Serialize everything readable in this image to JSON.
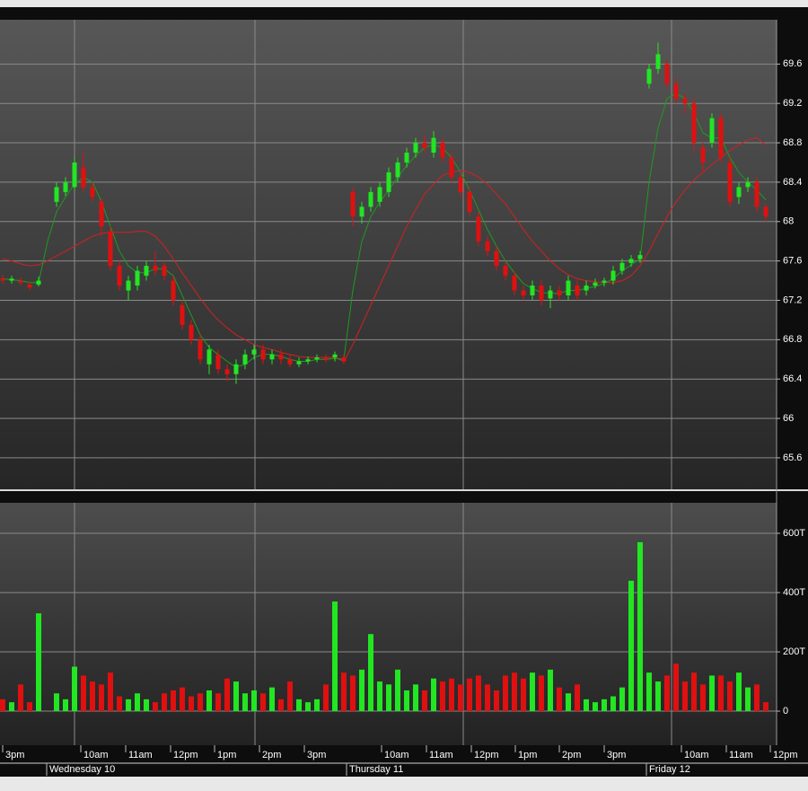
{
  "chart_data": [
    {
      "type": "candlestick",
      "up_color": "#22e622",
      "down_color": "#e01010",
      "xlim": [
        -0.3,
        86.2
      ],
      "ylim": [
        65.28,
        70.05
      ],
      "yticks": [
        65.6,
        66,
        66.4,
        66.8,
        67.2,
        67.6,
        68,
        68.4,
        68.8,
        69.2,
        69.6
      ],
      "grid": true,
      "candles": [
        [
          67.42,
          67.46,
          67.37,
          67.4
        ],
        [
          67.4,
          67.45,
          67.37,
          67.42
        ],
        [
          67.4,
          67.43,
          67.35,
          67.38
        ],
        [
          67.36,
          67.39,
          67.3,
          67.33
        ],
        [
          67.36,
          67.44,
          67.34,
          67.4
        ],
        null,
        [
          68.2,
          68.4,
          68.15,
          68.35
        ],
        [
          68.3,
          68.45,
          68.26,
          68.4
        ],
        [
          68.35,
          68.65,
          68.32,
          68.6
        ],
        [
          68.55,
          68.7,
          68.3,
          68.35
        ],
        [
          68.35,
          68.4,
          68.2,
          68.25
        ],
        [
          68.2,
          68.24,
          67.85,
          67.95
        ],
        [
          67.9,
          67.95,
          67.5,
          67.55
        ],
        [
          67.55,
          67.6,
          67.3,
          67.35
        ],
        [
          67.3,
          67.45,
          67.2,
          67.4
        ],
        [
          67.35,
          67.55,
          67.3,
          67.5
        ],
        [
          67.45,
          67.6,
          67.4,
          67.55
        ],
        [
          67.55,
          67.7,
          67.45,
          67.5
        ],
        [
          67.55,
          67.6,
          67.4,
          67.45
        ],
        [
          67.4,
          67.45,
          67.15,
          67.2
        ],
        [
          67.15,
          67.2,
          66.9,
          66.95
        ],
        [
          66.95,
          67.0,
          66.75,
          66.8
        ],
        [
          66.8,
          66.85,
          66.55,
          66.6
        ],
        [
          66.55,
          66.75,
          66.45,
          66.7
        ],
        [
          66.65,
          66.7,
          66.45,
          66.5
        ],
        [
          66.5,
          66.55,
          66.38,
          66.45
        ],
        [
          66.45,
          66.6,
          66.35,
          66.55
        ],
        [
          66.55,
          66.7,
          66.5,
          66.65
        ],
        [
          66.65,
          66.75,
          66.6,
          66.7
        ],
        [
          66.7,
          66.75,
          66.55,
          66.6
        ],
        [
          66.6,
          66.7,
          66.55,
          66.65
        ],
        [
          66.65,
          66.7,
          66.55,
          66.6
        ],
        [
          66.6,
          66.65,
          66.52,
          66.55
        ],
        [
          66.55,
          66.62,
          66.52,
          66.58
        ],
        [
          66.58,
          66.63,
          66.55,
          66.6
        ],
        [
          66.6,
          66.65,
          66.57,
          66.62
        ],
        [
          66.62,
          66.65,
          66.57,
          66.6
        ],
        [
          66.62,
          66.68,
          66.58,
          66.65
        ],
        [
          66.62,
          66.65,
          66.55,
          66.58
        ],
        [
          68.3,
          68.35,
          67.95,
          68.05
        ],
        [
          68.05,
          68.2,
          67.98,
          68.15
        ],
        [
          68.15,
          68.35,
          68.1,
          68.3
        ],
        [
          68.2,
          68.4,
          68.15,
          68.35
        ],
        [
          68.3,
          68.55,
          68.25,
          68.5
        ],
        [
          68.45,
          68.65,
          68.4,
          68.6
        ],
        [
          68.6,
          68.75,
          68.55,
          68.7
        ],
        [
          68.7,
          68.85,
          68.65,
          68.8
        ],
        [
          68.8,
          68.88,
          68.7,
          68.75
        ],
        [
          68.7,
          68.92,
          68.65,
          68.85
        ],
        [
          68.8,
          68.85,
          68.6,
          68.65
        ],
        [
          68.65,
          68.7,
          68.4,
          68.45
        ],
        [
          68.45,
          68.5,
          68.25,
          68.3
        ],
        [
          68.3,
          68.35,
          68.05,
          68.1
        ],
        [
          68.05,
          68.1,
          67.75,
          67.8
        ],
        [
          67.8,
          67.85,
          67.65,
          67.7
        ],
        [
          67.7,
          67.75,
          67.5,
          67.55
        ],
        [
          67.55,
          67.6,
          67.4,
          67.45
        ],
        [
          67.45,
          67.5,
          67.25,
          67.3
        ],
        [
          67.3,
          67.35,
          67.2,
          67.25
        ],
        [
          67.25,
          67.4,
          67.2,
          67.35
        ],
        [
          67.35,
          67.4,
          67.15,
          67.2
        ],
        [
          67.22,
          67.35,
          67.12,
          67.3
        ],
        [
          67.3,
          67.35,
          67.2,
          67.25
        ],
        [
          67.25,
          67.45,
          67.2,
          67.4
        ],
        [
          67.35,
          67.4,
          67.2,
          67.25
        ],
        [
          67.3,
          67.4,
          67.25,
          67.35
        ],
        [
          67.35,
          67.42,
          67.32,
          67.38
        ],
        [
          67.38,
          67.43,
          67.34,
          67.4
        ],
        [
          67.4,
          67.55,
          67.36,
          67.5
        ],
        [
          67.5,
          67.62,
          67.46,
          67.58
        ],
        [
          67.58,
          67.66,
          67.54,
          67.62
        ],
        [
          67.62,
          67.7,
          67.58,
          67.66
        ],
        [
          69.4,
          69.6,
          69.35,
          69.55
        ],
        [
          69.55,
          69.82,
          69.5,
          69.7
        ],
        [
          69.6,
          69.65,
          69.35,
          69.4
        ],
        [
          69.4,
          69.45,
          69.2,
          69.25
        ],
        [
          69.25,
          69.3,
          69.1,
          69.2
        ],
        [
          69.2,
          69.25,
          68.7,
          68.8
        ],
        [
          68.75,
          68.8,
          68.5,
          68.6
        ],
        [
          68.8,
          69.1,
          68.75,
          69.05
        ],
        [
          69.05,
          69.1,
          68.6,
          68.65
        ],
        [
          68.6,
          68.65,
          68.15,
          68.2
        ],
        [
          68.25,
          68.4,
          68.18,
          68.35
        ],
        [
          68.35,
          68.45,
          68.3,
          68.4
        ],
        [
          68.4,
          68.45,
          68.1,
          68.15
        ],
        [
          68.15,
          68.18,
          68.0,
          68.05
        ]
      ],
      "lines": [
        {
          "color": "#d42020",
          "values": [
            67.62,
            67.6,
            67.57,
            67.55,
            67.56,
            67.6,
            67.65,
            67.7,
            67.75,
            67.8,
            67.85,
            67.88,
            67.89,
            67.89,
            67.89,
            67.9,
            67.9,
            67.85,
            67.75,
            67.62,
            67.48,
            67.35,
            67.22,
            67.1,
            67.0,
            66.92,
            66.85,
            66.8,
            66.75,
            66.72,
            66.7,
            66.67,
            66.65,
            66.63,
            66.62,
            66.62,
            66.62,
            66.62,
            66.58,
            66.75,
            66.95,
            67.15,
            67.35,
            67.55,
            67.75,
            67.95,
            68.12,
            68.28,
            68.38,
            68.47,
            68.5,
            68.52,
            68.5,
            68.45,
            68.38,
            68.28,
            68.18,
            68.05,
            67.92,
            67.8,
            67.7,
            67.6,
            67.52,
            67.46,
            67.42,
            67.4,
            67.39,
            67.38,
            67.38,
            67.4,
            67.45,
            67.55,
            67.7,
            67.88,
            68.05,
            68.2,
            68.32,
            68.42,
            68.5,
            68.58,
            68.65,
            68.72,
            68.78,
            68.83,
            68.85,
            68.78
          ]
        },
        {
          "color": "#1f9a1f",
          "values": [
            67.42,
            67.41,
            67.4,
            67.38,
            67.38,
            67.8,
            68.1,
            68.25,
            68.38,
            68.45,
            68.4,
            68.2,
            67.95,
            67.7,
            67.55,
            67.48,
            67.48,
            67.52,
            67.52,
            67.45,
            67.25,
            67.05,
            66.85,
            66.72,
            66.65,
            66.58,
            66.52,
            66.55,
            66.62,
            66.65,
            66.65,
            66.63,
            66.6,
            66.58,
            66.58,
            66.6,
            66.6,
            66.61,
            66.6,
            67.3,
            67.8,
            68.05,
            68.2,
            68.32,
            68.45,
            68.57,
            68.67,
            68.75,
            68.78,
            68.75,
            68.65,
            68.5,
            68.32,
            68.12,
            67.92,
            67.75,
            67.6,
            67.48,
            67.37,
            67.32,
            67.28,
            67.27,
            67.27,
            67.3,
            67.3,
            67.32,
            67.34,
            67.37,
            67.42,
            67.5,
            67.56,
            67.62,
            68.4,
            68.95,
            69.25,
            69.3,
            69.25,
            69.1,
            68.9,
            68.85,
            68.85,
            68.65,
            68.5,
            68.4,
            68.32,
            68.22
          ]
        }
      ]
    },
    {
      "type": "bar",
      "xlim": [
        -0.3,
        86.2
      ],
      "ylim": [
        -115,
        703
      ],
      "yticks": [
        0,
        {
          "value": 200,
          "label": "200T"
        },
        {
          "value": 400,
          "label": "400T"
        },
        {
          "value": 600,
          "label": "600T"
        }
      ],
      "grid": true,
      "values": [
        40,
        30,
        90,
        30,
        330,
        null,
        60,
        40,
        150,
        120,
        100,
        90,
        130,
        50,
        40,
        60,
        40,
        30,
        60,
        70,
        80,
        50,
        60,
        70,
        60,
        110,
        100,
        60,
        70,
        60,
        80,
        40,
        100,
        40,
        30,
        40,
        90,
        370,
        130,
        120,
        140,
        260,
        100,
        90,
        140,
        70,
        90,
        70,
        110,
        100,
        110,
        90,
        110,
        120,
        90,
        70,
        120,
        130,
        110,
        130,
        120,
        140,
        80,
        60,
        90,
        40,
        30,
        40,
        50,
        80,
        440,
        570,
        130,
        100,
        120,
        160,
        100,
        130,
        90,
        120,
        120,
        100,
        130,
        80,
        90,
        30
      ],
      "xticks": [
        {
          "value": 0,
          "label": "3pm"
        },
        {
          "value": 8.7,
          "label": "10am"
        },
        {
          "value": 13.7,
          "label": "11am"
        },
        {
          "value": 18.7,
          "label": "12pm"
        },
        {
          "value": 23.6,
          "label": "1pm"
        },
        {
          "value": 28.6,
          "label": "2pm"
        },
        {
          "value": 33.6,
          "label": "3pm"
        },
        {
          "value": 42.2,
          "label": "10am"
        },
        {
          "value": 47.2,
          "label": "11am"
        },
        {
          "value": 52.2,
          "label": "12pm"
        },
        {
          "value": 57.1,
          "label": "1pm"
        },
        {
          "value": 62,
          "label": "2pm"
        },
        {
          "value": 67,
          "label": "3pm"
        },
        {
          "value": 75.6,
          "label": "10am"
        },
        {
          "value": 80.6,
          "label": "11am"
        },
        {
          "value": 85.5,
          "label": "12pm"
        }
      ],
      "day_labels": [
        {
          "value": 4.9,
          "label": "Wednesday 10"
        },
        {
          "value": 38.3,
          "label": "Thursday 11"
        },
        {
          "value": 71.7,
          "label": "Friday 12"
        }
      ]
    }
  ]
}
